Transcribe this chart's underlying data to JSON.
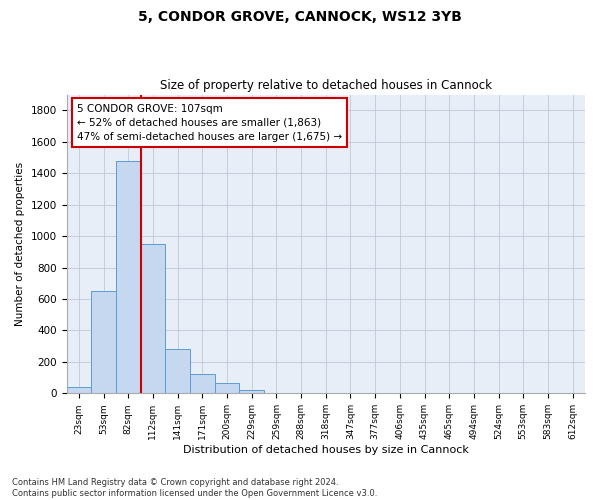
{
  "title": "5, CONDOR GROVE, CANNOCK, WS12 3YB",
  "subtitle": "Size of property relative to detached houses in Cannock",
  "xlabel": "Distribution of detached houses by size in Cannock",
  "ylabel": "Number of detached properties",
  "categories": [
    "23sqm",
    "53sqm",
    "82sqm",
    "112sqm",
    "141sqm",
    "171sqm",
    "200sqm",
    "229sqm",
    "259sqm",
    "288sqm",
    "318sqm",
    "347sqm",
    "377sqm",
    "406sqm",
    "435sqm",
    "465sqm",
    "494sqm",
    "524sqm",
    "553sqm",
    "583sqm",
    "612sqm"
  ],
  "bar_heights": [
    40,
    650,
    1480,
    950,
    280,
    120,
    65,
    20,
    5,
    2,
    2,
    2,
    2,
    2,
    2,
    2,
    2,
    2,
    2,
    2,
    2
  ],
  "bar_color": "#c5d8f0",
  "bar_edge_color": "#5b9bd5",
  "vline_color": "#cc0000",
  "annotation_line1": "5 CONDOR GROVE: 107sqm",
  "annotation_line2": "← 52% of detached houses are smaller (1,863)",
  "annotation_line3": "47% of semi-detached houses are larger (1,675) →",
  "annotation_box_color": "#cc0000",
  "annotation_fill": "#ffffff",
  "ylim": [
    0,
    1900
  ],
  "yticks": [
    0,
    200,
    400,
    600,
    800,
    1000,
    1200,
    1400,
    1600,
    1800
  ],
  "grid_color": "#c0c8d8",
  "bg_color": "#e8eef8",
  "footer": "Contains HM Land Registry data © Crown copyright and database right 2024.\nContains public sector information licensed under the Open Government Licence v3.0."
}
